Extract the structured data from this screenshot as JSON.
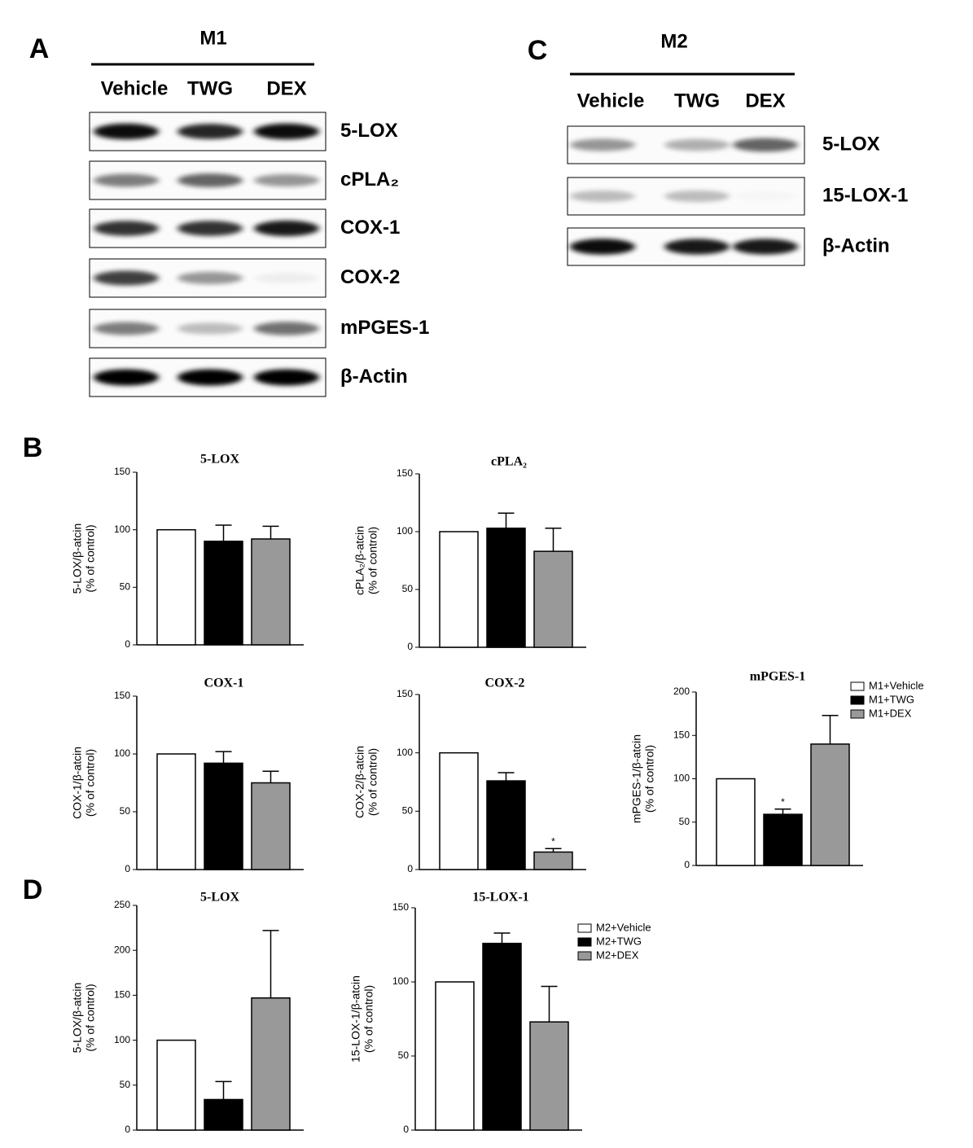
{
  "panel_labels": [
    "A",
    "B",
    "C",
    "D"
  ],
  "blot_m1": {
    "title": "M1",
    "lanes": [
      "Vehicle",
      "TWG",
      "DEX"
    ],
    "bands": [
      "5-LOX",
      "cPLA₂",
      "COX-1",
      "COX-2",
      "mPGES-1",
      "β-Actin"
    ]
  },
  "blot_m2": {
    "title": "M2",
    "lanes": [
      "Vehicle",
      "TWG",
      "DEX"
    ],
    "bands": [
      "5-LOX",
      "15-LOX-1",
      "β-Actin"
    ]
  },
  "chart_data": [
    {
      "type": "bar",
      "title": "5-LOX",
      "ylabel": [
        "5-LOX/β-atcin",
        "(% of control)"
      ],
      "colors": [
        "#ffffff",
        "#000000",
        "#999999"
      ],
      "values": [
        100,
        90,
        92
      ],
      "errors": [
        null,
        14,
        11
      ],
      "ylim": [
        0,
        150
      ],
      "yticks": [
        0,
        50,
        100,
        150
      ]
    },
    {
      "type": "bar",
      "title": "cPLA₂",
      "ylabel": [
        "cPLA₂/β-atcin",
        "(% of control)"
      ],
      "colors": [
        "#ffffff",
        "#000000",
        "#999999"
      ],
      "values": [
        100,
        103,
        83
      ],
      "errors": [
        null,
        13,
        20
      ],
      "ylim": [
        0,
        150
      ],
      "yticks": [
        0,
        50,
        100,
        150
      ]
    },
    {
      "type": "bar",
      "title": "COX-1",
      "ylabel": [
        "COX-1/β-atcin",
        "(% of control)"
      ],
      "colors": [
        "#ffffff",
        "#000000",
        "#999999"
      ],
      "values": [
        100,
        92,
        75
      ],
      "errors": [
        null,
        10,
        10
      ],
      "ylim": [
        0,
        150
      ],
      "yticks": [
        0,
        50,
        100,
        150
      ]
    },
    {
      "type": "bar",
      "title": "COX-2",
      "ylabel": [
        "COX-2/β-atcin",
        "(% of control)"
      ],
      "colors": [
        "#ffffff",
        "#000000",
        "#999999"
      ],
      "values": [
        100,
        76,
        15
      ],
      "errors": [
        null,
        7,
        3
      ],
      "annotations": [
        {
          "index": 2,
          "text": "*"
        }
      ],
      "ylim": [
        0,
        150
      ],
      "yticks": [
        0,
        50,
        100,
        150
      ]
    },
    {
      "type": "bar",
      "title": "mPGES-1",
      "ylabel": [
        "mPGES-1/β-atcin",
        "(% of control)"
      ],
      "colors": [
        "#ffffff",
        "#000000",
        "#999999"
      ],
      "values": [
        100,
        59,
        140
      ],
      "errors": [
        null,
        6,
        33
      ],
      "annotations": [
        {
          "index": 1,
          "text": "*"
        }
      ],
      "legend": [
        "M1+Vehicle",
        "M1+TWG",
        "M1+DEX"
      ],
      "ylim": [
        0,
        200
      ],
      "yticks": [
        0,
        50,
        100,
        150,
        200
      ]
    },
    {
      "type": "bar",
      "title": "5-LOX",
      "ylabel": [
        "5-LOX/β-atcin",
        "(% of control)"
      ],
      "colors": [
        "#ffffff",
        "#000000",
        "#999999"
      ],
      "values": [
        100,
        34,
        147
      ],
      "errors": [
        null,
        20,
        75
      ],
      "ylim": [
        0,
        250
      ],
      "yticks": [
        0,
        50,
        100,
        150,
        200,
        250
      ]
    },
    {
      "type": "bar",
      "title": "15-LOX-1",
      "ylabel": [
        "15-LOX-1/β-atcin",
        "(% of control)"
      ],
      "colors": [
        "#ffffff",
        "#000000",
        "#999999"
      ],
      "values": [
        100,
        126,
        73
      ],
      "errors": [
        null,
        7,
        24
      ],
      "legend": [
        "M2+Vehicle",
        "M2+TWG",
        "M2+DEX"
      ],
      "ylim": [
        0,
        150
      ],
      "yticks": [
        0,
        50,
        100,
        150
      ]
    }
  ]
}
